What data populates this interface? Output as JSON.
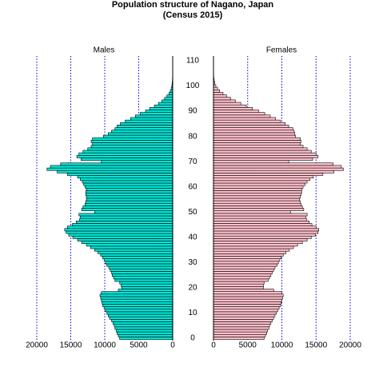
{
  "chart_data": {
    "type": "pyramid",
    "title": "Population structure of Nagano, Japan",
    "subtitle": "(Census 2015)",
    "ages": [
      0,
      1,
      2,
      3,
      4,
      5,
      6,
      7,
      8,
      9,
      10,
      11,
      12,
      13,
      14,
      15,
      16,
      17,
      18,
      19,
      20,
      21,
      22,
      23,
      24,
      25,
      26,
      27,
      28,
      29,
      30,
      31,
      32,
      33,
      34,
      35,
      36,
      37,
      38,
      39,
      40,
      41,
      42,
      43,
      44,
      45,
      46,
      47,
      48,
      49,
      50,
      51,
      52,
      53,
      54,
      55,
      56,
      57,
      58,
      59,
      60,
      61,
      62,
      63,
      64,
      65,
      66,
      67,
      68,
      69,
      70,
      71,
      72,
      73,
      74,
      75,
      76,
      77,
      78,
      79,
      80,
      81,
      82,
      83,
      84,
      85,
      86,
      87,
      88,
      89,
      90,
      91,
      92,
      93,
      94,
      95,
      96,
      97,
      98,
      99,
      100,
      101,
      102,
      103,
      104
    ],
    "series": [
      {
        "name": "Males",
        "color": "#00e5d6",
        "values": [
          7800,
          8000,
          8200,
          8300,
          8500,
          8600,
          8800,
          9000,
          9300,
          9500,
          9700,
          9900,
          10100,
          10300,
          10400,
          10500,
          10600,
          10700,
          10500,
          8000,
          7500,
          7600,
          7800,
          8500,
          8700,
          8900,
          9000,
          9200,
          9400,
          9700,
          9900,
          10100,
          10300,
          10600,
          11000,
          11500,
          12100,
          12700,
          13400,
          14000,
          14700,
          15300,
          15700,
          15900,
          15500,
          14800,
          14200,
          13700,
          13600,
          13800,
          11500,
          13400,
          13200,
          12900,
          12800,
          12700,
          12700,
          12800,
          12800,
          12700,
          12900,
          13100,
          13300,
          13600,
          14000,
          15500,
          17000,
          18500,
          18000,
          16500,
          10500,
          13500,
          14100,
          13800,
          13200,
          12500,
          12000,
          11800,
          12000,
          11800,
          10200,
          9500,
          9000,
          8500,
          8200,
          7700,
          7000,
          6200,
          5500,
          4800,
          4000,
          3400,
          2700,
          2100,
          1600,
          1200,
          850,
          550,
          350,
          220,
          130,
          80,
          50,
          30,
          15
        ]
      },
      {
        "name": "Females",
        "color": "#ffc0cb",
        "values": [
          7400,
          7600,
          7800,
          7900,
          8100,
          8200,
          8400,
          8600,
          8800,
          9000,
          9200,
          9400,
          9600,
          9800,
          9900,
          10000,
          10100,
          10200,
          10000,
          8800,
          7300,
          7300,
          7400,
          8000,
          8200,
          8400,
          8600,
          8800,
          9000,
          9300,
          9500,
          9700,
          9900,
          10200,
          10600,
          11100,
          11700,
          12300,
          13000,
          13700,
          14300,
          14900,
          15300,
          15400,
          15000,
          14400,
          14000,
          13600,
          13500,
          13700,
          11300,
          13200,
          13000,
          12800,
          12700,
          12600,
          12700,
          12800,
          12900,
          12900,
          13100,
          13400,
          13700,
          14100,
          14600,
          16000,
          17600,
          19000,
          18700,
          17500,
          11000,
          14500,
          15300,
          15000,
          14300,
          13700,
          13100,
          12700,
          12800,
          12700,
          12000,
          11900,
          11800,
          11600,
          11000,
          10500,
          9800,
          9100,
          8300,
          7500,
          6600,
          5700,
          4800,
          4000,
          3200,
          2500,
          1900,
          1400,
          900,
          600,
          350,
          200,
          120,
          60,
          30
        ]
      }
    ],
    "xlim": [
      0,
      20000
    ],
    "xticks": [
      0,
      5000,
      10000,
      15000,
      20000
    ],
    "ylim": [
      0,
      110
    ],
    "yticks": [
      0,
      10,
      20,
      30,
      40,
      50,
      60,
      70,
      80,
      90,
      100,
      110
    ],
    "grid": true,
    "grid_color": "#0000cc"
  }
}
